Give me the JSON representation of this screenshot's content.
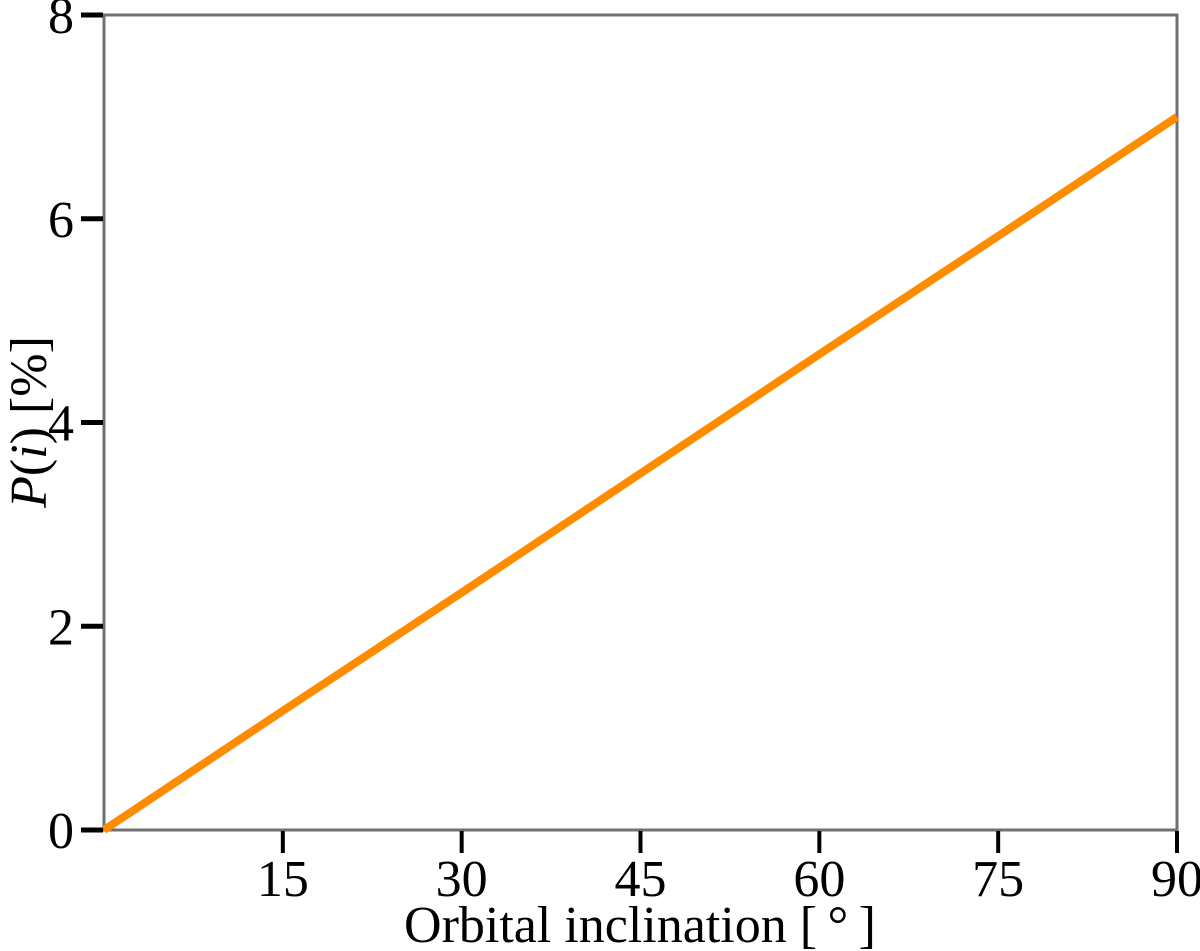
{
  "chart_data": {
    "type": "line",
    "title": "",
    "xlabel": "Orbital inclination [ ° ]",
    "ylabel": "P(i) [%]",
    "ylabel_parts": [
      {
        "text": "P",
        "italic": true
      },
      {
        "text": "(",
        "italic": false
      },
      {
        "text": "i",
        "italic": true
      },
      {
        "text": ")",
        "italic": false
      },
      {
        "text": " [%]",
        "italic": false
      }
    ],
    "xlim": [
      0,
      90
    ],
    "ylim": [
      0,
      8
    ],
    "xticks": [
      15,
      30,
      45,
      60,
      75,
      90
    ],
    "yticks": [
      0,
      2,
      4,
      6,
      8
    ],
    "grid": false,
    "legend": "none",
    "axis_style": "boxed frame, black major ticks pointing outward, no minor ticks",
    "series": [
      {
        "name": "P(i)",
        "color": "#ff8c00",
        "x": [
          0,
          15,
          30,
          45,
          60,
          75,
          90
        ],
        "y": [
          0,
          1.17,
          2.33,
          3.5,
          4.67,
          5.83,
          7.0
        ]
      }
    ]
  },
  "colors": {
    "background": "#ffffff",
    "frame": "#707070",
    "tick": "#000000",
    "text": "#000000",
    "line": "#ff8c00"
  }
}
